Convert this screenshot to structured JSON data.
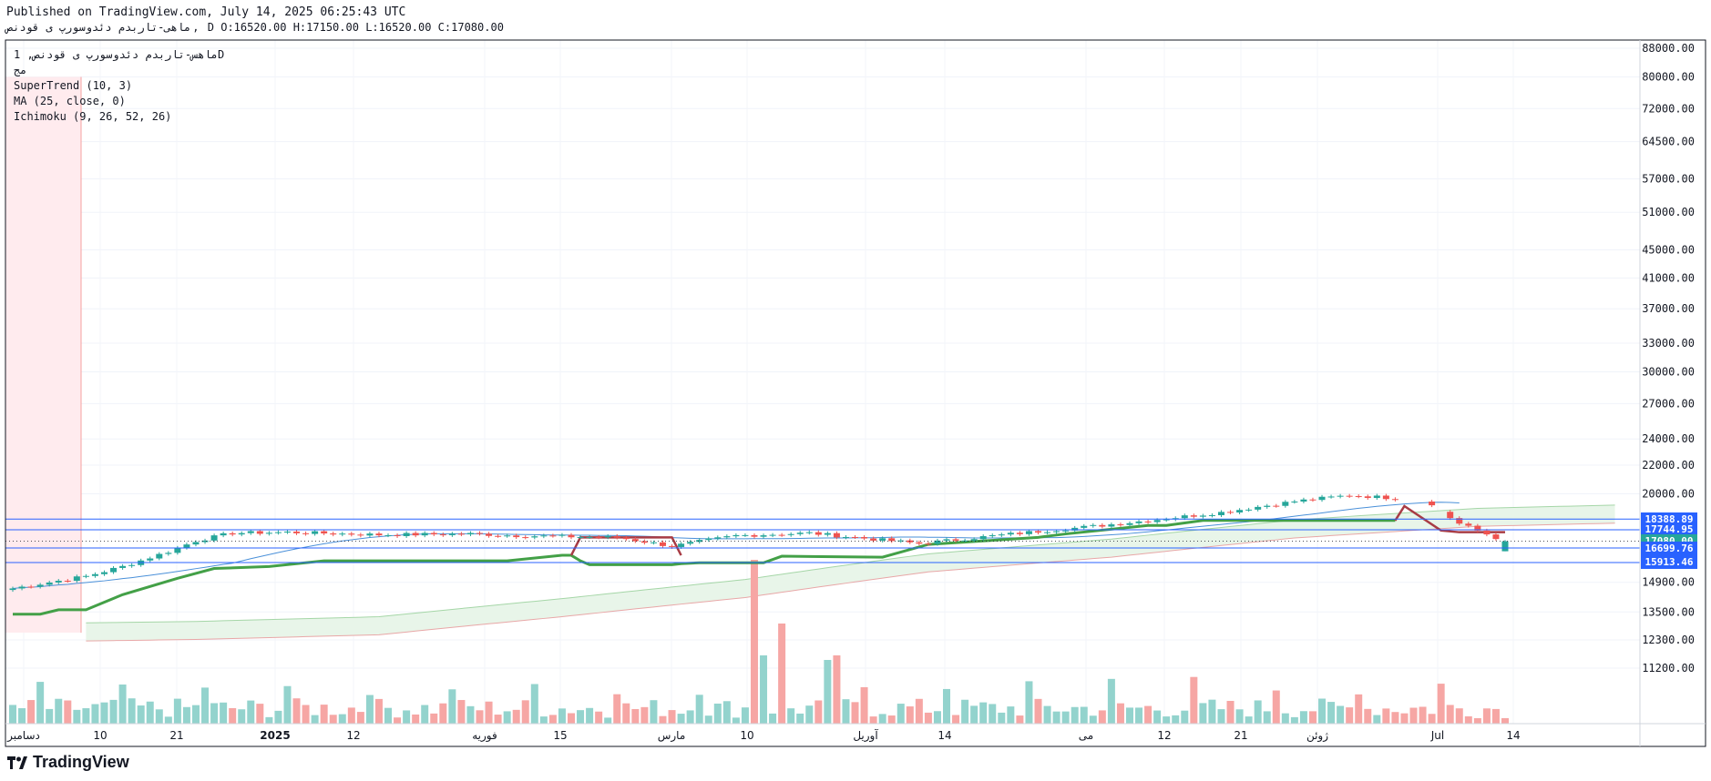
{
  "header": {
    "published": "Published on TradingView.com, July 14, 2025 06:25:43 UTC",
    "symbol": "ماهی-تاربدم دئدوسورپ ی قودنص",
    "interval": "D",
    "o": "O:16520.00",
    "h": "H:17150.00",
    "l": "L:16520.00",
    "c": "C:17080.00"
  },
  "legend": {
    "title": "ماهس-تاربدم دئدوسورپ ی قودنص, 1D",
    "subtitle": "مج",
    "supertrend": "SuperTrend (10, 3)",
    "ma": "MA (25, close, 0)",
    "ichimoku": "Ichimoku (9, 26, 52, 26)"
  },
  "brand": {
    "name": "TradingView"
  },
  "colors": {
    "up": "#26a69a",
    "down": "#ef5350",
    "volUp": "#93d3cd",
    "volDown": "#f6a6a4",
    "supertrendUp": "#43a047",
    "supertrendDown": "#a83c45",
    "ma": "#4a90d9",
    "cloud": "#e8f5e9",
    "hline": "#2962ff"
  },
  "chart_data": {
    "type": "candlestick",
    "scale": "log",
    "y_ticks": [
      "88000.00",
      "80000.00",
      "72000.00",
      "64500.00",
      "57000.00",
      "51000.00",
      "45000.00",
      "41000.00",
      "37000.00",
      "33000.00",
      "30000.00",
      "27000.00",
      "24000.00",
      "22000.00",
      "20000.00",
      "14900.00",
      "13500.00",
      "12300.00",
      "11200.00"
    ],
    "x_labels": [
      "دسامبر",
      "10",
      "21",
      "2025",
      "12",
      "فوریه",
      "15",
      "مارس",
      "10",
      "آوریل",
      "14",
      "می",
      "12",
      "21",
      "ژوئن",
      "Jul",
      "14"
    ],
    "price_tags": [
      {
        "value": 18388.89,
        "label": "18388.89",
        "color": "#2962ff"
      },
      {
        "value": 17744.95,
        "label": "17744.95",
        "color": "#2962ff"
      },
      {
        "value": 17080.0,
        "label": "17080.00",
        "color": "#26a69a"
      },
      {
        "value": 16699.76,
        "label": "16699.76",
        "color": "#2962ff"
      },
      {
        "value": 15913.46,
        "label": "15913.46",
        "color": "#2962ff"
      }
    ],
    "last": {
      "o": 16520,
      "h": 17150,
      "l": 16520,
      "c": 17080
    }
  }
}
